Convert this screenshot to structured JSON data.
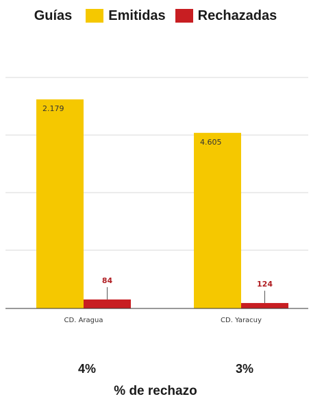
{
  "legend": {
    "title": "Guías",
    "items": [
      {
        "label": "Emitidas",
        "color": "#f5c800"
      },
      {
        "label": "Rechazadas",
        "color": "#c81e22"
      }
    ]
  },
  "chart_data": {
    "type": "bar",
    "categories": [
      "CD. Aragua",
      "CD. Yaracuy"
    ],
    "series": [
      {
        "name": "Emitidas",
        "color": "#f5c800",
        "values": [
          2179,
          4605
        ],
        "labels": [
          "2.179",
          "4.605"
        ],
        "heights": [
          1.0,
          0.84
        ]
      },
      {
        "name": "Rechazadas",
        "color": "#c81e22",
        "values": [
          84,
          124
        ],
        "labels": [
          "84",
          "124"
        ],
        "heights": [
          0.043,
          0.026
        ]
      }
    ],
    "grid": true,
    "legend_position": "top"
  },
  "rejection": {
    "percents": [
      "4%",
      "3%"
    ],
    "caption": "% de rechazo"
  }
}
